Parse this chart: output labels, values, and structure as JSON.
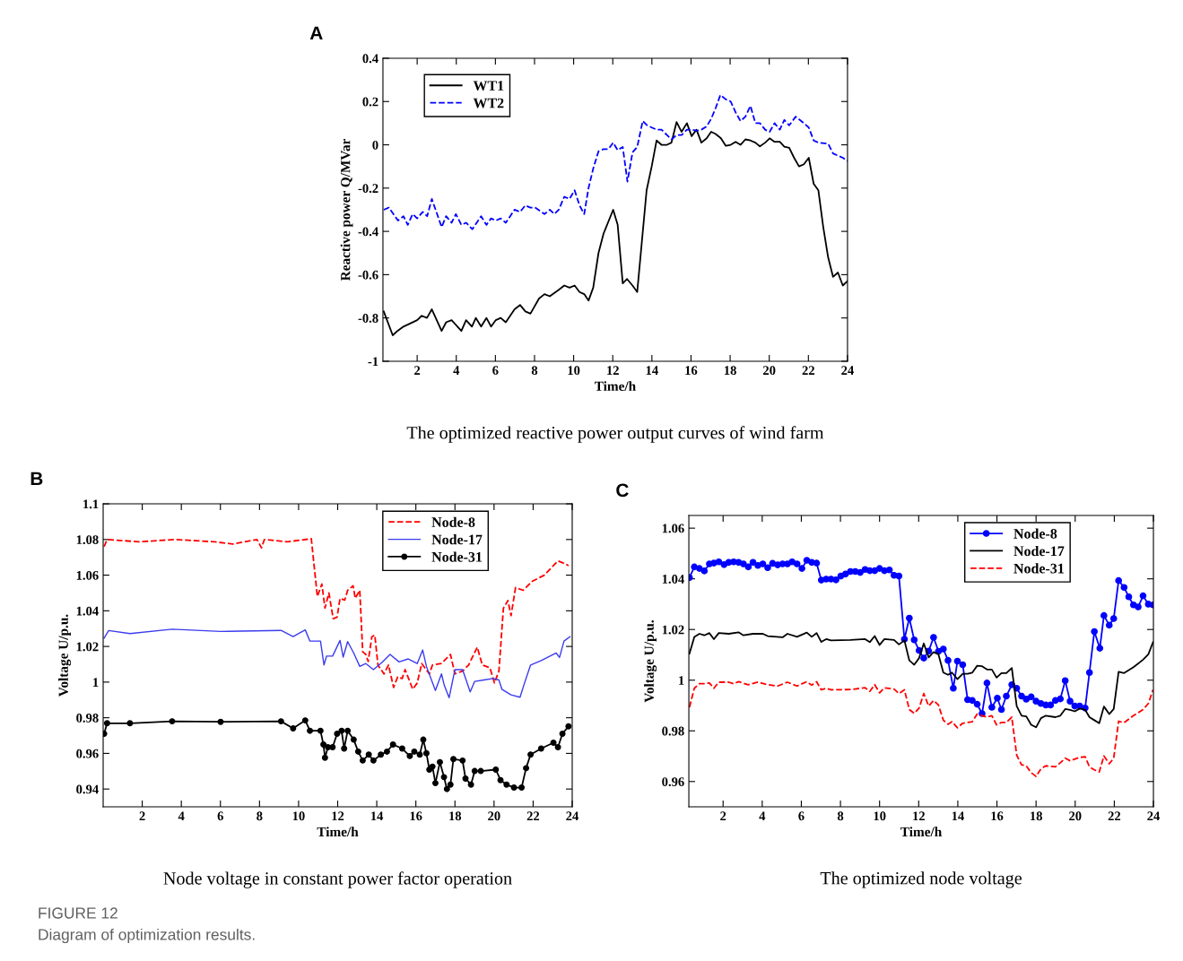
{
  "chart_data": [
    {
      "type": "line",
      "title": "The optimized reactive power output curves of wind farm",
      "xlabel": "Time/h",
      "ylabel": "Reactive power Q/MVar",
      "annotations": [
        "A"
      ],
      "xlim": [
        0.25,
        24
      ],
      "xticks": [
        2,
        4,
        6,
        8,
        10,
        12,
        14,
        16,
        18,
        20,
        22,
        24
      ],
      "ylim": [
        -1,
        0.4
      ],
      "yticks": [
        -1,
        -0.8,
        -0.6,
        -0.4,
        -0.2,
        0,
        0.2,
        0.4
      ],
      "legend": "top left",
      "series": [
        {
          "name": "WT1",
          "color": "#000000",
          "line_style": "solid",
          "x": [
            0.29,
            0.75,
            0.99,
            1.3,
            2,
            2.23,
            2.5,
            2.75,
            3.25,
            3.48,
            3.76,
            4.26,
            4.5,
            4.8,
            5,
            5.27,
            5.54,
            5.78,
            6.02,
            6.27,
            6.53,
            6.98,
            7.26,
            7.53,
            7.79,
            8.23,
            8.51,
            8.78,
            9.24,
            9.52,
            9.79,
            10.05,
            10.3,
            10.54,
            10.76,
            11.0,
            11.27,
            11.53,
            12.02,
            12.25,
            12.51,
            12.73,
            13.01,
            13.25,
            13.73,
            13.99,
            14.24,
            14.49,
            14.77,
            15.0,
            15.26,
            15.52,
            15.79,
            16.03,
            16.28,
            16.53,
            16.8,
            17.03,
            17.26,
            17.53,
            17.78,
            18.03,
            18.28,
            18.53,
            18.78,
            19.04,
            19.29,
            19.52,
            19.79,
            20.02,
            20.27,
            20.54,
            20.77,
            21.02,
            21.27,
            21.52,
            21.77,
            22.02,
            22.27,
            22.51,
            22.76,
            23.01,
            23.26,
            23.51,
            23.76,
            24
          ],
          "values": [
            -0.77,
            -0.88,
            -0.86,
            -0.84,
            -0.81,
            -0.79,
            -0.8,
            -0.76,
            -0.86,
            -0.82,
            -0.81,
            -0.86,
            -0.81,
            -0.84,
            -0.8,
            -0.84,
            -0.8,
            -0.84,
            -0.81,
            -0.8,
            -0.82,
            -0.76,
            -0.74,
            -0.77,
            -0.78,
            -0.71,
            -0.69,
            -0.7,
            -0.67,
            -0.65,
            -0.66,
            -0.65,
            -0.68,
            -0.69,
            -0.72,
            -0.66,
            -0.5,
            -0.41,
            -0.3,
            -0.37,
            -0.64,
            -0.62,
            -0.65,
            -0.68,
            -0.21,
            -0.1,
            0.02,
            0.0,
            0.0,
            0.01,
            0.105,
            0.06,
            0.1,
            0.04,
            0.07,
            0.01,
            0.03,
            0.06,
            0.05,
            0.03,
            -0.005,
            0.0,
            0.014,
            0.0,
            0.025,
            0.02,
            0.01,
            -0.007,
            0.01,
            0.03,
            0.014,
            0.014,
            -0.009,
            -0.014,
            -0.06,
            -0.1,
            -0.09,
            -0.06,
            -0.18,
            -0.21,
            -0.38,
            -0.52,
            -0.61,
            -0.59,
            -0.65,
            -0.63
          ]
        },
        {
          "name": "WT2",
          "color": "#0000ff",
          "line_style": "dashed",
          "x": [
            0.29,
            0.55,
            1.02,
            1.3,
            1.52,
            1.77,
            2,
            2.28,
            2.51,
            2.75,
            3.25,
            3.48,
            3.76,
            3.98,
            4.26,
            4.5,
            4.82,
            5.27,
            5.54,
            5.78,
            6.02,
            6.27,
            6.53,
            6.98,
            7.26,
            7.53,
            7.79,
            8.03,
            8.51,
            8.78,
            9.01,
            9.24,
            9.52,
            9.79,
            10.05,
            10.3,
            10.54,
            10.76,
            11.0,
            11.27,
            11.53,
            11.78,
            12.02,
            12.25,
            12.51,
            12.75,
            13.01,
            13.25,
            13.53,
            13.76,
            13.99,
            14.24,
            14.49,
            14.77,
            15.0,
            15.26,
            15.52,
            15.79,
            16.03,
            16.28,
            16.53,
            16.8,
            17.03,
            17.26,
            17.5,
            17.78,
            18.03,
            18.28,
            18.53,
            18.78,
            19.04,
            19.29,
            19.52,
            19.79,
            20.02,
            20.27,
            20.54,
            20.77,
            21.02,
            21.35,
            21.77,
            22.02,
            22.27,
            22.51,
            23.01,
            23.26,
            23.51,
            23.76,
            24
          ],
          "values": [
            -0.3,
            -0.29,
            -0.35,
            -0.33,
            -0.37,
            -0.32,
            -0.34,
            -0.31,
            -0.33,
            -0.25,
            -0.38,
            -0.33,
            -0.36,
            -0.32,
            -0.37,
            -0.36,
            -0.39,
            -0.33,
            -0.37,
            -0.34,
            -0.35,
            -0.34,
            -0.36,
            -0.3,
            -0.31,
            -0.28,
            -0.29,
            -0.29,
            -0.32,
            -0.3,
            -0.32,
            -0.3,
            -0.24,
            -0.25,
            -0.21,
            -0.28,
            -0.32,
            -0.2,
            -0.11,
            -0.03,
            -0.02,
            -0.02,
            0.01,
            -0.025,
            -0.01,
            -0.17,
            -0.035,
            -0.01,
            0.11,
            0.09,
            0.08,
            0.07,
            0.07,
            0.045,
            0.025,
            0.045,
            0.045,
            0.07,
            0.07,
            0.065,
            0.07,
            0.085,
            0.12,
            0.17,
            0.23,
            0.21,
            0.2,
            0.15,
            0.11,
            0.13,
            0.18,
            0.1,
            0.1,
            0.07,
            0.06,
            0.1,
            0.07,
            0.115,
            0.09,
            0.13,
            0.1,
            0.08,
            0.02,
            0.01,
            0.005,
            -0.04,
            -0.05,
            -0.06,
            -0.075
          ]
        }
      ]
    },
    {
      "type": "line",
      "title": "Node voltage in constant power factor operation",
      "xlabel": "Time/h",
      "ylabel": "Voltage U/p.u.",
      "annotations": [
        "B",
        "FIGURE 12",
        "Diagram of optimization results."
      ],
      "xlim": [
        0,
        24
      ],
      "xticks": [
        2,
        4,
        6,
        8,
        10,
        12,
        14,
        16,
        18,
        20,
        22,
        24
      ],
      "ylim": [
        0.93,
        1.1
      ],
      "yticks": [
        0.94,
        0.96,
        0.98,
        1,
        1.02,
        1.04,
        1.06,
        1.08,
        1.1
      ],
      "legend": "top right",
      "series": [
        {
          "name": "Node-8",
          "color": "#ff0000",
          "line_style": "dashed",
          "x": [
            0.05,
            0.2,
            1.83,
            3.69,
            5.7,
            6.63,
            7.87,
            8.1,
            8.25,
            9.41,
            10.65,
            10.96,
            11.19,
            11.35,
            11.55,
            11.77,
            11.97,
            12.12,
            12.36,
            12.51,
            12.79,
            12.9,
            13.13,
            13.28,
            13.44,
            13.56,
            13.75,
            13.9,
            14.06,
            14.37,
            14.6,
            14.86,
            15.07,
            15.3,
            15.45,
            15.84,
            16.07,
            16.3,
            16.69,
            16.85,
            17.31,
            17.77,
            18.0,
            18.39,
            18.7,
            19.14,
            19.4,
            19.79,
            20.02,
            20.25,
            20.48,
            20.71,
            20.87,
            21.1,
            21.49,
            21.95,
            22.57,
            23.27,
            23.66,
            23.81
          ],
          "values": [
            1.076,
            1.08,
            1.0787,
            1.08,
            1.0787,
            1.0775,
            1.08,
            1.0753,
            1.08,
            1.0787,
            1.0804,
            1.048,
            1.055,
            1.0415,
            1.05,
            1.0356,
            1.0365,
            1.047,
            1.046,
            1.0515,
            1.054,
            1.047,
            1.0515,
            1.017,
            1.0155,
            1.0116,
            1.0255,
            1.0264,
            1.0096,
            1.0046,
            1.0096,
            0.997,
            1.0029,
            1.002,
            1.007,
            0.996,
            0.9995,
            1.0104,
            1.0046,
            1.0096,
            1.0104,
            1.0155,
            1.0046,
            1.0062,
            1.0096,
            1.0196,
            1.0096,
            1.008,
            0.9995,
            1.0062,
            1.0415,
            1.0457,
            1.0373,
            1.053,
            1.0515,
            1.0565,
            1.06,
            1.068,
            1.0663,
            1.0653
          ]
        },
        {
          "name": "Node-17",
          "color": "#3b3bf0",
          "line_style": "solid",
          "x": [
            0.05,
            0.28,
            1.37,
            3.53,
            6.01,
            9.1,
            9.72,
            10.34,
            10.58,
            11.12,
            11.3,
            11.43,
            11.74,
            12.12,
            12.28,
            12.51,
            12.82,
            13.13,
            13.44,
            13.83,
            14.29,
            14.68,
            15.14,
            15.61,
            16.07,
            16.35,
            16.54,
            17.0,
            17.31,
            17.46,
            17.7,
            18.0,
            18.39,
            18.78,
            19.01,
            19.48,
            19.94,
            20.25,
            20.4,
            20.87,
            21.33,
            21.56,
            21.87,
            22.41,
            23.18,
            23.35,
            23.58,
            23.89
          ],
          "values": [
            1.0247,
            1.0289,
            1.0272,
            1.0297,
            1.0284,
            1.029,
            1.0255,
            1.0293,
            1.023,
            1.023,
            1.0096,
            1.0146,
            1.0146,
            1.0234,
            1.014,
            1.0227,
            1.0163,
            1.0088,
            1.0104,
            1.007,
            1.0113,
            1.0155,
            1.0113,
            1.013,
            1.0104,
            1.018,
            1.0088,
            0.9953,
            1.0046,
            0.998,
            0.9912,
            1.007,
            1.007,
            0.9945,
            1.0004,
            1.0012,
            1.002,
            1.0012,
            0.996,
            0.9928,
            0.9915,
            0.9995,
            1.0096,
            1.0121,
            1.0163,
            1.0138,
            1.023,
            1.0255
          ]
        },
        {
          "name": "Node-31",
          "color": "#000000",
          "line_style": "solid",
          "marker": "circle",
          "x": [
            0.05,
            0.2,
            1.37,
            3.53,
            6.01,
            9.1,
            9.72,
            10.34,
            10.58,
            11.12,
            11.27,
            11.35,
            11.5,
            11.74,
            11.97,
            12.2,
            12.33,
            12.51,
            12.82,
            13.05,
            13.28,
            13.59,
            13.83,
            14.21,
            14.52,
            14.83,
            15.3,
            15.69,
            15.92,
            16.2,
            16.38,
            16.54,
            16.69,
            16.85,
            17.0,
            17.23,
            17.44,
            17.59,
            17.77,
            17.92,
            18.39,
            18.54,
            18.82,
            19.01,
            19.32,
            20.09,
            20.33,
            20.64,
            21.02,
            21.41,
            21.64,
            21.87,
            22.41,
            23.04,
            23.27,
            23.5,
            23.81
          ],
          "values": [
            0.971,
            0.9769,
            0.9769,
            0.978,
            0.9777,
            0.978,
            0.974,
            0.9785,
            0.9727,
            0.9727,
            0.965,
            0.9576,
            0.9635,
            0.9635,
            0.971,
            0.9727,
            0.9627,
            0.9727,
            0.9677,
            0.961,
            0.956,
            0.9593,
            0.956,
            0.9593,
            0.961,
            0.965,
            0.9627,
            0.9585,
            0.961,
            0.9593,
            0.9677,
            0.9601,
            0.9509,
            0.9526,
            0.9433,
            0.9551,
            0.9467,
            0.94,
            0.9425,
            0.9568,
            0.956,
            0.9459,
            0.9425,
            0.9501,
            0.9501,
            0.9509,
            0.945,
            0.9425,
            0.9408,
            0.9408,
            0.9517,
            0.9593,
            0.9627,
            0.966,
            0.9635,
            0.971,
            0.9752
          ]
        }
      ]
    },
    {
      "type": "line",
      "title": "The optimized node voltage",
      "xlabel": "Time/h",
      "ylabel": "Voltage U/p.u.",
      "annotations": [
        "C"
      ],
      "xlim": [
        0.25,
        24
      ],
      "xticks": [
        2,
        4,
        6,
        8,
        10,
        12,
        14,
        16,
        18,
        20,
        22,
        24
      ],
      "ylim": [
        0.95,
        1.065
      ],
      "yticks": [
        0.96,
        0.98,
        1,
        1.02,
        1.04,
        1.06
      ],
      "legend": "top right",
      "series": [
        {
          "name": "Node-8",
          "color": "#0000ff",
          "line_style": "solid",
          "marker": "circle",
          "x": [
            0.28,
            0.53,
            0.79,
            1.04,
            1.3,
            1.53,
            1.78,
            2.05,
            2.29,
            2.54,
            2.79,
            3.04,
            3.29,
            3.53,
            3.78,
            4.03,
            4.28,
            4.53,
            4.79,
            5.04,
            5.29,
            5.53,
            5.78,
            6.03,
            6.28,
            6.53,
            6.78,
            7.02,
            7.27,
            7.52,
            7.77,
            8.02,
            8.26,
            8.51,
            8.76,
            9.01,
            9.26,
            9.5,
            9.75,
            10.0,
            10.25,
            10.5,
            10.74,
            10.99,
            11.27,
            11.52,
            11.77,
            12.02,
            12.26,
            12.51,
            12.76,
            13.01,
            13.26,
            13.5,
            13.77,
            13.98,
            14.25,
            14.5,
            14.74,
            14.99,
            15.24,
            15.49,
            15.74,
            16.02,
            16.23,
            16.48,
            16.76,
            17.01,
            17.26,
            17.5,
            17.75,
            18.0,
            18.25,
            18.5,
            18.74,
            18.99,
            19.24,
            19.49,
            19.74,
            19.98,
            20.23,
            20.51,
            20.73,
            20.98,
            21.26,
            21.47,
            21.74,
            21.97,
            22.22,
            22.5,
            22.74,
            22.98,
            23.22,
            23.47,
            23.74,
            23.98
          ],
          "values": [
            1.0405,
            1.0447,
            1.0441,
            1.0431,
            1.0459,
            1.0462,
            1.0467,
            1.0456,
            1.0465,
            1.0467,
            1.0465,
            1.0459,
            1.0447,
            1.0465,
            1.0453,
            1.0459,
            1.0444,
            1.0461,
            1.0455,
            1.0459,
            1.0459,
            1.0467,
            1.0459,
            1.0441,
            1.0473,
            1.0465,
            1.0462,
            1.0395,
            1.0399,
            1.0399,
            1.0396,
            1.0411,
            1.0419,
            1.0429,
            1.0429,
            1.0425,
            1.0437,
            1.0432,
            1.0432,
            1.0441,
            1.0432,
            1.0435,
            1.0414,
            1.0411,
            1.0162,
            1.0245,
            1.0159,
            1.0117,
            1.0087,
            1.0115,
            1.0169,
            1.0114,
            1.0123,
            1.0078,
            0.9968,
            1.0075,
            1.0061,
            0.9923,
            0.992,
            0.9905,
            0.9868,
            0.9989,
            0.9893,
            0.9929,
            0.9884,
            0.9937,
            0.9982,
            0.9968,
            0.9937,
            0.9925,
            0.9934,
            0.9917,
            0.9908,
            0.9902,
            0.9902,
            0.992,
            0.9926,
            0.9998,
            0.9917,
            0.9898,
            0.9898,
            0.989,
            1.003,
            1.0192,
            1.0126,
            1.0255,
            1.0217,
            1.0243,
            1.0393,
            1.0366,
            1.0329,
            1.0297,
            1.0289,
            1.0333,
            1.03,
            1.0297
          ]
        },
        {
          "name": "Node-17",
          "color": "#000000",
          "line_style": "solid",
          "x": [
            0.28,
            0.53,
            0.79,
            1.04,
            1.3,
            1.53,
            1.78,
            2.29,
            2.79,
            3.04,
            3.53,
            4.03,
            4.28,
            5.04,
            5.29,
            5.78,
            6.28,
            6.53,
            6.78,
            7.02,
            7.27,
            7.52,
            8.51,
            9.26,
            9.5,
            9.75,
            10.0,
            10.25,
            10.74,
            10.99,
            11.27,
            11.52,
            11.77,
            12.02,
            12.26,
            12.51,
            12.76,
            13.01,
            13.26,
            13.5,
            13.7,
            13.98,
            14.25,
            14.5,
            14.74,
            14.99,
            15.24,
            15.49,
            15.74,
            15.98,
            16.23,
            16.48,
            16.76,
            17.01,
            17.26,
            17.5,
            17.75,
            18.0,
            18.25,
            18.5,
            18.99,
            19.24,
            19.49,
            19.74,
            19.98,
            20.23,
            20.51,
            20.73,
            20.98,
            21.23,
            21.47,
            21.74,
            21.97,
            22.22,
            22.5,
            22.98,
            23.47,
            23.74,
            23.98
          ],
          "values": [
            1.0105,
            1.0171,
            1.0183,
            1.0177,
            1.0186,
            1.0162,
            1.0186,
            1.0183,
            1.0189,
            1.0177,
            1.0183,
            1.0183,
            1.0174,
            1.0169,
            1.0183,
            1.0171,
            1.0188,
            1.0171,
            1.0186,
            1.0151,
            1.0162,
            1.0157,
            1.0159,
            1.0162,
            1.015,
            1.0174,
            1.0139,
            1.0162,
            1.0159,
            1.0141,
            1.0157,
            1.0078,
            1.0061,
            1.0087,
            1.0145,
            1.009,
            1.0111,
            1.0102,
            1.003,
            1.0021,
            1.003,
            1.0004,
            1.0025,
            1.0025,
            1.003,
            1.0057,
            1.0055,
            1.0042,
            1.0042,
            1.001,
            1.0028,
            1.0028,
            1.0048,
            0.9898,
            0.986,
            0.9857,
            0.9824,
            0.9814,
            0.985,
            0.986,
            0.9854,
            0.986,
            0.9886,
            0.9883,
            0.9877,
            0.9888,
            0.9883,
            0.9854,
            0.9842,
            0.983,
            0.9896,
            0.9866,
            0.9886,
            1.0033,
            1.0028,
            1.0051,
            1.0081,
            1.0102,
            1.015
          ]
        },
        {
          "name": "Node-31",
          "color": "#ff0000",
          "line_style": "dashed",
          "x": [
            0.28,
            0.53,
            0.79,
            1.04,
            1.3,
            1.53,
            1.78,
            2.29,
            2.54,
            2.79,
            3.29,
            3.78,
            4.28,
            4.79,
            5.29,
            5.78,
            6.28,
            6.53,
            6.78,
            7.02,
            7.27,
            7.52,
            8.51,
            9.26,
            9.5,
            9.75,
            10.0,
            10.25,
            10.74,
            10.99,
            11.27,
            11.52,
            11.77,
            12.02,
            12.26,
            12.51,
            12.76,
            13.01,
            13.26,
            13.5,
            13.7,
            13.98,
            14.25,
            14.74,
            14.99,
            15.24,
            15.49,
            15.74,
            15.98,
            16.23,
            16.48,
            16.76,
            17.01,
            17.26,
            17.5,
            17.75,
            18.0,
            18.25,
            18.5,
            18.99,
            19.24,
            19.49,
            19.74,
            20.23,
            20.51,
            20.73,
            20.98,
            21.23,
            21.47,
            21.74,
            21.97,
            22.22,
            22.5,
            22.98,
            23.47,
            23.74,
            23.98
          ],
          "values": [
            0.9893,
            0.9968,
            0.9986,
            0.9986,
            0.9989,
            0.9968,
            0.9992,
            0.9992,
            0.9986,
            0.9994,
            0.9982,
            0.9992,
            0.9982,
            0.9977,
            0.9992,
            0.9977,
            0.9994,
            0.998,
            0.9994,
            0.9962,
            0.9968,
            0.9962,
            0.9963,
            0.997,
            0.9956,
            0.9982,
            0.995,
            0.997,
            0.9965,
            0.9947,
            0.9962,
            0.9884,
            0.9869,
            0.989,
            0.9947,
            0.9898,
            0.992,
            0.9902,
            0.9842,
            0.9826,
            0.9836,
            0.9812,
            0.983,
            0.9836,
            0.9866,
            0.986,
            0.9854,
            0.986,
            0.9824,
            0.9833,
            0.9833,
            0.9854,
            0.9704,
            0.9666,
            0.9662,
            0.9635,
            0.962,
            0.965,
            0.9662,
            0.9658,
            0.9674,
            0.9692,
            0.9682,
            0.9695,
            0.9698,
            0.9658,
            0.9646,
            0.9638,
            0.9701,
            0.967,
            0.9692,
            0.9838,
            0.9832,
            0.986,
            0.9884,
            0.9908,
            0.9962
          ]
        }
      ]
    }
  ]
}
